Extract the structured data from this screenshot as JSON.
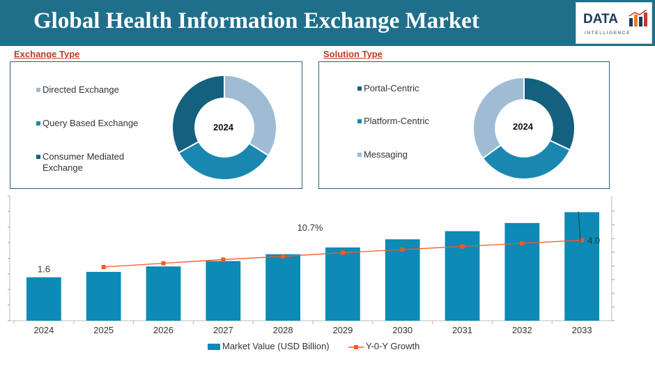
{
  "header": {
    "title": "Global Health Information Exchange Market",
    "logo_main": "DATA",
    "logo_sub": "INTELLIGENCE"
  },
  "colors": {
    "header_bg": "#1f6f8b",
    "light_blue": "#9fbcd4",
    "mid_blue": "#1a87b0",
    "dark_blue": "#13607f",
    "bar": "#0d8ab5",
    "growth_line": "#ff5722",
    "section_title": "#c0392b"
  },
  "exchange_type": {
    "title": "Exchange Type",
    "center_label": "2024",
    "items": [
      {
        "label": "Directed Exchange",
        "color": "#9fbcd4",
        "share": 0.34
      },
      {
        "label": "Query Based Exchange",
        "color": "#1a87b0",
        "share": 0.33
      },
      {
        "label": "Consumer Mediated Exchange",
        "color": "#13607f",
        "share": 0.33
      }
    ]
  },
  "solution_type": {
    "title": "Solution Type",
    "center_label": "2024",
    "items": [
      {
        "label": "Portal-Centric",
        "color": "#13607f",
        "share": 0.32
      },
      {
        "label": "Platform-Centric",
        "color": "#1a87b0",
        "share": 0.33
      },
      {
        "label": "Messaging",
        "color": "#9fbcd4",
        "share": 0.35
      }
    ]
  },
  "chart_data": {
    "type": "bar",
    "categories": [
      "2024",
      "2025",
      "2026",
      "2027",
      "2028",
      "2029",
      "2030",
      "2031",
      "2032",
      "2033"
    ],
    "series": [
      {
        "name": "Market Value (USD Billion)",
        "type": "bar",
        "values": [
          1.6,
          1.8,
          2.0,
          2.2,
          2.45,
          2.7,
          3.0,
          3.3,
          3.6,
          4.0
        ]
      },
      {
        "name": "Y-0-Y Growth",
        "type": "line",
        "values": [
          null,
          0.86,
          0.92,
          0.98,
          1.03,
          1.09,
          1.14,
          1.19,
          1.24,
          1.29
        ]
      }
    ],
    "data_labels": {
      "first": "1.6",
      "last": "4.0",
      "growth": "10.7%"
    },
    "ylim": [
      0,
      4.6
    ],
    "line_ylim": [
      0,
      2.0
    ],
    "legend_position": "bottom"
  }
}
